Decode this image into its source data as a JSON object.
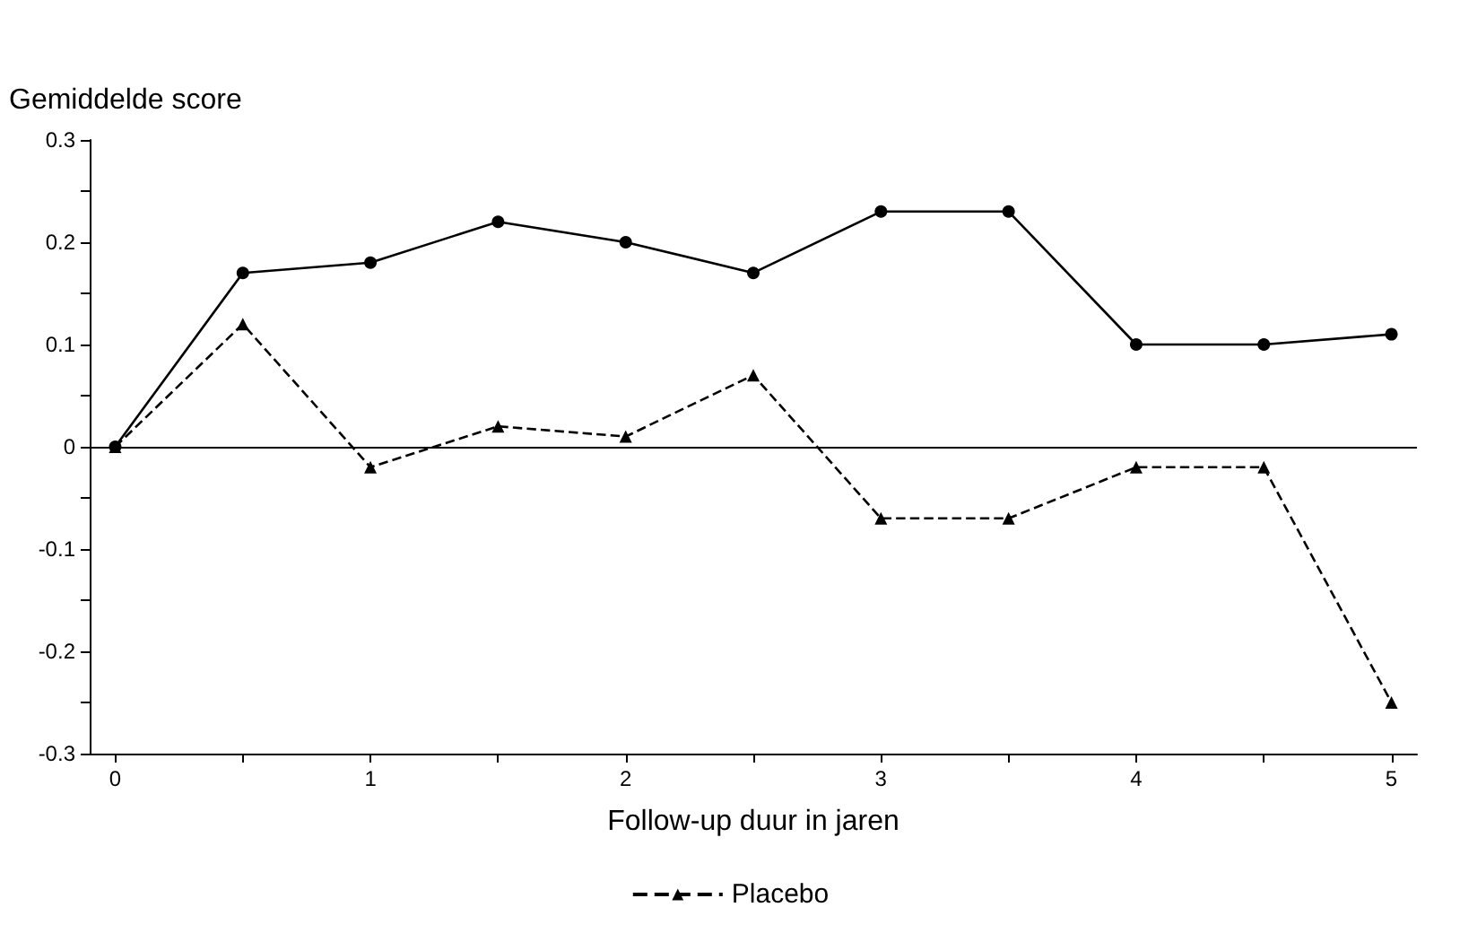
{
  "chart_data": {
    "type": "line",
    "xlabel": "Follow-up duur in jaren",
    "ylabel": "Gemiddelde score",
    "x": [
      0,
      0.5,
      1,
      1.5,
      2,
      2.5,
      3,
      3.5,
      4,
      4.5,
      5
    ],
    "series": [
      {
        "color": "#000000",
        "marker": "circle",
        "line_style": "solid",
        "values": [
          0,
          0.17,
          0.18,
          0.22,
          0.2,
          0.17,
          0.23,
          0.23,
          0.1,
          0.1,
          0.11
        ]
      },
      {
        "name": "Placebo",
        "color": "#000000",
        "marker": "triangle",
        "line_style": "dashed",
        "values": [
          0,
          0.12,
          -0.02,
          0.02,
          0.01,
          0.07,
          -0.07,
          -0.07,
          -0.02,
          -0.02,
          -0.25
        ]
      }
    ],
    "xlim": [
      -0.1,
      5.1
    ],
    "xticks": [
      0,
      {
        "value": 0.5,
        "label": null
      },
      1,
      {
        "value": 1.5,
        "label": null
      },
      2,
      {
        "value": 2.5,
        "label": null
      },
      3,
      {
        "value": 3.5,
        "label": null
      },
      4,
      {
        "value": 4.5,
        "label": null
      },
      5
    ],
    "ylim": [
      -0.3,
      0.3
    ],
    "yticks": [
      -0.3,
      {
        "value": -0.25,
        "label": null
      },
      -0.2,
      {
        "value": -0.15,
        "label": null
      },
      -0.1,
      {
        "value": -0.05,
        "label": null
      },
      0,
      {
        "value": 0.05,
        "label": null
      },
      0.1,
      {
        "value": 0.15,
        "label": null
      },
      0.2,
      {
        "value": 0.25,
        "label": null
      },
      0.3
    ],
    "ref_lines": [
      {
        "axis": "y",
        "value": 0,
        "color": "#000000"
      }
    ],
    "grid": false,
    "legend": "bottom"
  }
}
